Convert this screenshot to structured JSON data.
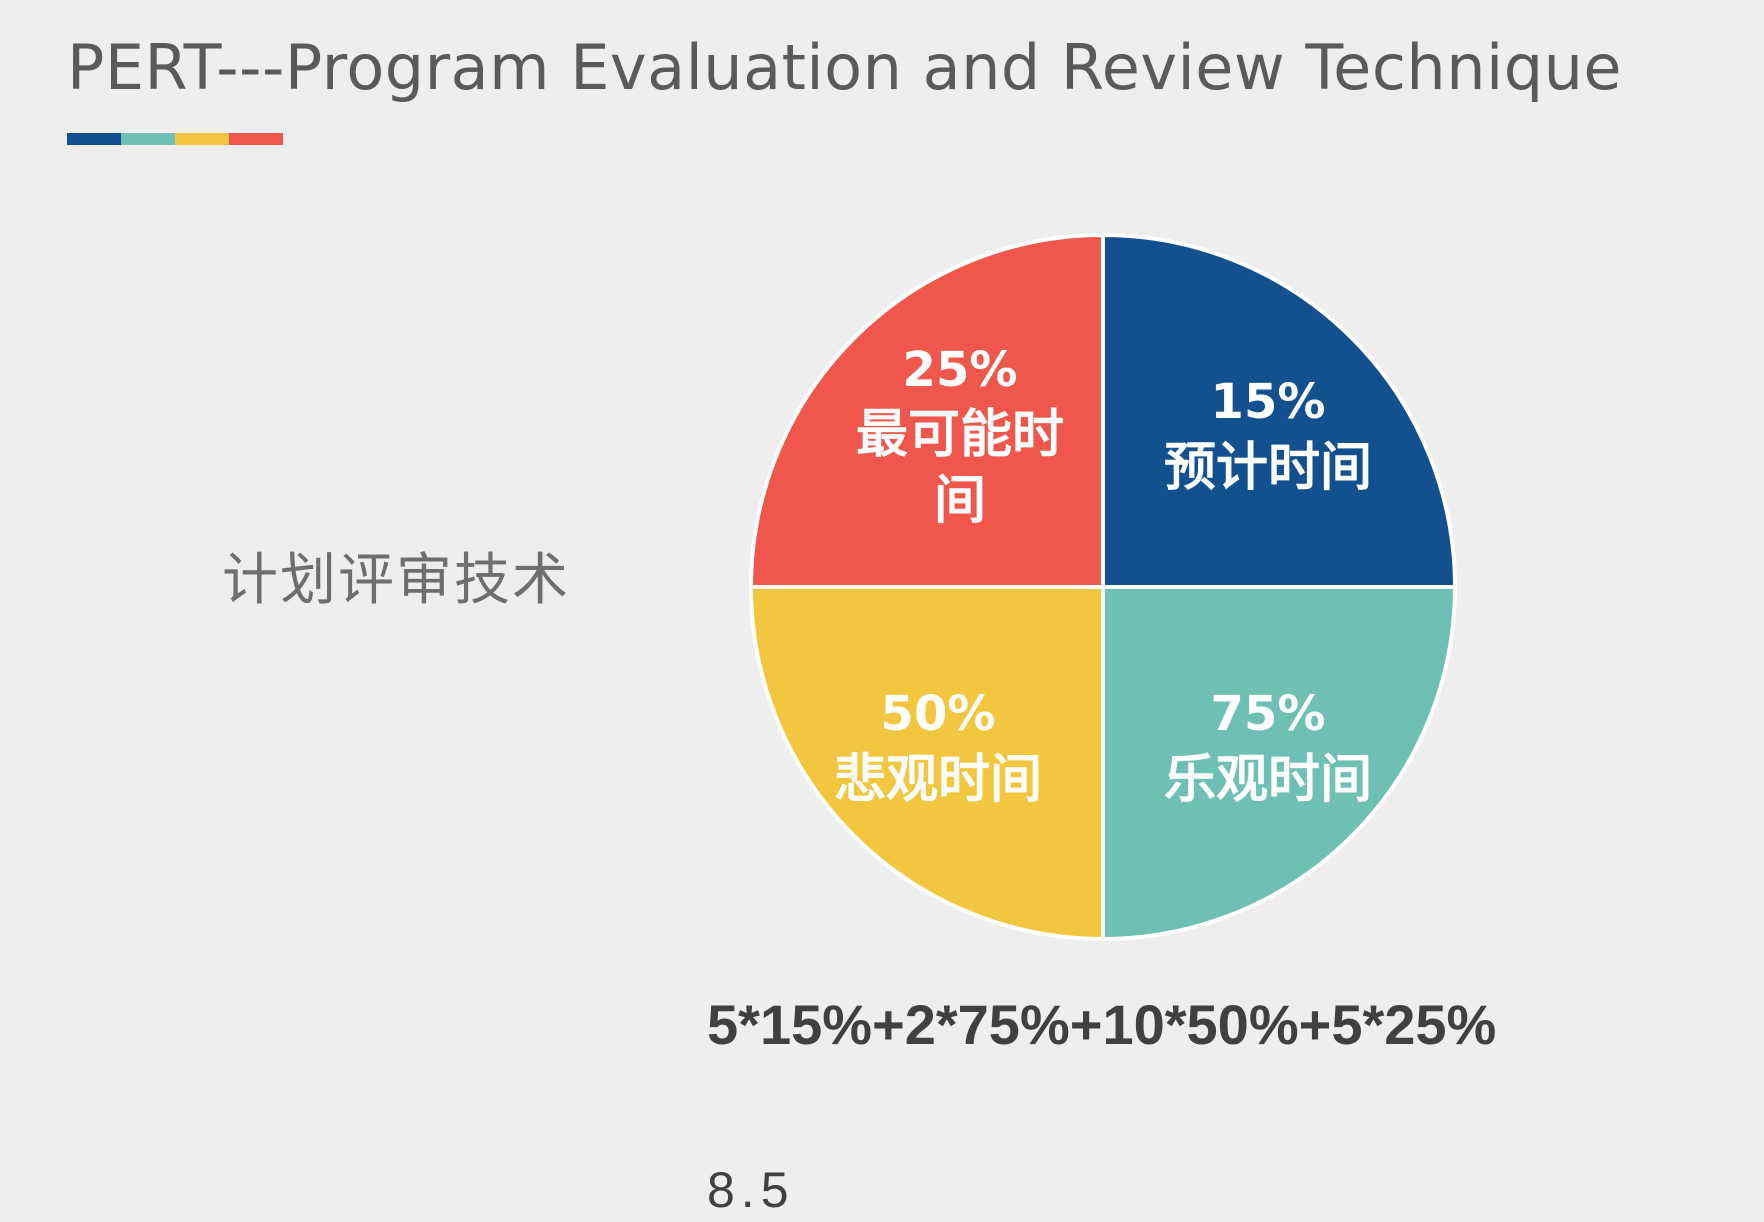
{
  "page": {
    "title": "PERT---Program Evaluation and Review Technique",
    "subtitle": "计划评审技术",
    "accent_colors": [
      "#12508f",
      "#6fc0b4",
      "#f2c63e",
      "#ef574c"
    ]
  },
  "chart_data": {
    "type": "pie",
    "title": "",
    "slices": [
      {
        "value": "15%",
        "label": "预计时间",
        "color": "#12508f"
      },
      {
        "value": "75%",
        "label": "乐观时间",
        "color": "#6fc0b4"
      },
      {
        "value": "50%",
        "label": "悲观时间",
        "color": "#f2c63e"
      },
      {
        "value": "25%",
        "label": "最可能时间",
        "label_lines": [
          "最可能时",
          "间"
        ],
        "color": "#ef574c"
      }
    ],
    "slice_fractions": [
      0.25,
      0.25,
      0.25,
      0.25
    ]
  },
  "formula": "5*15%+2*75%+10*50%+5*25%",
  "result": "8.5"
}
